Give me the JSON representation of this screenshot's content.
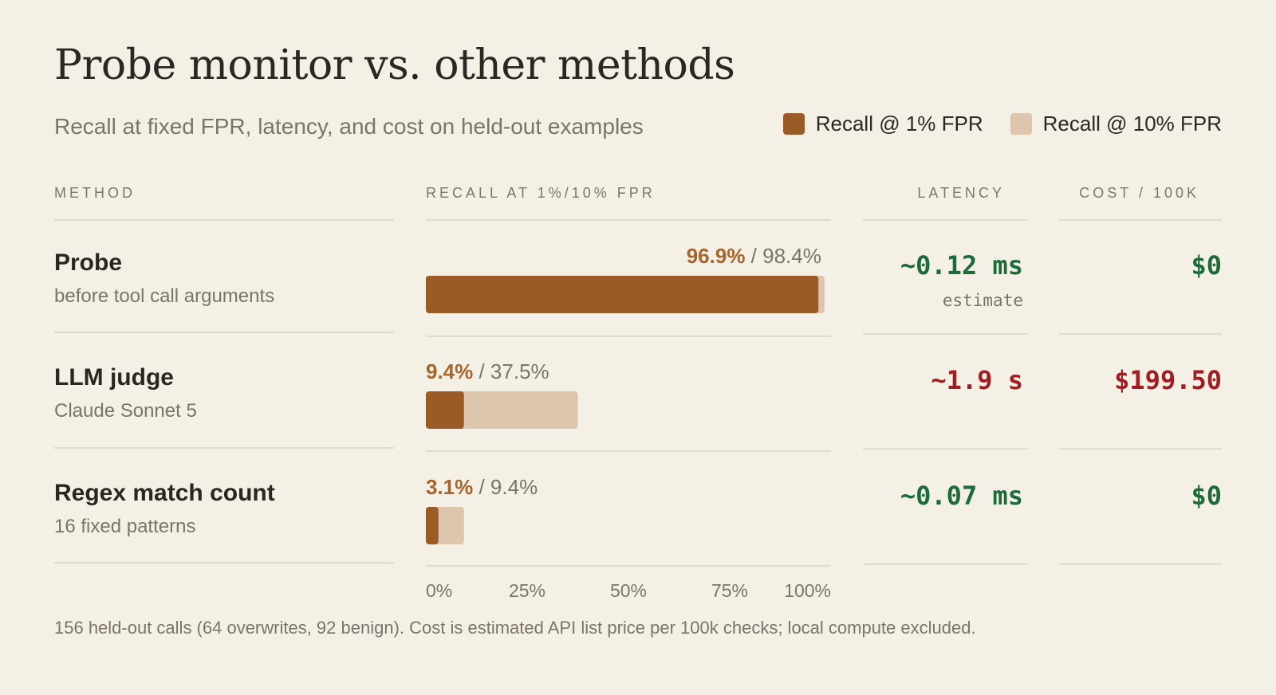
{
  "title": "Probe monitor vs. other methods",
  "subtitle": "Recall at fixed FPR, latency, and cost on held-out examples",
  "legend": [
    {
      "label": "Recall @ 1% FPR",
      "color": "#9b5b27"
    },
    {
      "label": "Recall @ 10% FPR",
      "color": "#ddc6ad"
    }
  ],
  "columns": {
    "method": "METHOD",
    "recall": "RECALL AT 1%/10% FPR",
    "latency": "LATENCY",
    "cost": "COST / 100K"
  },
  "rows": [
    {
      "name": "Probe",
      "sub": "before tool call arguments",
      "latency": "~0.12 ms",
      "latency_note": "estimate",
      "cost": "$0"
    },
    {
      "name": "LLM judge",
      "sub": "Claude Sonnet 5",
      "latency": "~1.9 s",
      "latency_note": "",
      "cost": "$199.50"
    },
    {
      "name": "Regex match count",
      "sub": "16 fixed patterns",
      "latency": "~0.07 ms",
      "latency_note": "",
      "cost": "$0"
    }
  ],
  "colors": {
    "good": "#1e6b3a",
    "bad": "#a11d21",
    "recall_1pct": "#9b5b27",
    "recall_10pct": "#ddc6ad",
    "recall_1pct_label": "#a5652c"
  },
  "chart_data": {
    "type": "bar",
    "orientation": "horizontal",
    "categories": [
      "Probe",
      "LLM judge",
      "Regex match count"
    ],
    "series": [
      {
        "name": "Recall @ 1% FPR",
        "values": [
          96.9,
          9.4,
          3.1
        ],
        "labels": [
          "96.9%",
          "9.4%",
          "3.1%"
        ]
      },
      {
        "name": "Recall @ 10% FPR",
        "values": [
          98.4,
          37.5,
          9.4
        ],
        "labels": [
          "98.4%",
          "37.5%",
          "9.4%"
        ]
      }
    ],
    "xlim": [
      0,
      100
    ],
    "ticks": [
      "0%",
      "25%",
      "50%",
      "75%",
      "100%"
    ],
    "tick_values": [
      0,
      25,
      50,
      75,
      100
    ],
    "grid": false,
    "legend": "top-right"
  },
  "footnote": "156 held-out calls (64 overwrites, 92 benign). Cost is estimated API list price per 100k checks; local compute excluded."
}
